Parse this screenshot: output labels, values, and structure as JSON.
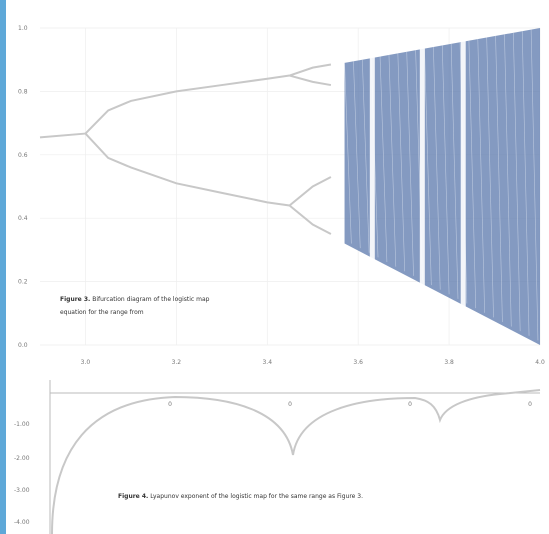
{
  "chart_data": [
    {
      "type": "line",
      "chart": "bifurcation-diagram",
      "xlim": [
        2.9,
        4.0
      ],
      "ylim": [
        0.0,
        1.0
      ],
      "x_ticks": [
        "3.0",
        "3.2",
        "3.4",
        "3.6",
        "3.8",
        "4.0"
      ],
      "y_ticks": [
        "1.0",
        "0.8",
        "0.6",
        "0.4",
        "0.2",
        "0.0"
      ],
      "grid": true,
      "branches": [
        {
          "x": [
            2.9,
            3.0
          ],
          "y": [
            0.655,
            0.667
          ]
        },
        {
          "x": [
            3.0,
            3.05,
            3.1,
            3.2,
            3.3,
            3.4,
            3.449
          ],
          "y": [
            0.667,
            0.74,
            0.77,
            0.8,
            0.82,
            0.84,
            0.85
          ]
        },
        {
          "x": [
            3.0,
            3.05,
            3.1,
            3.2,
            3.3,
            3.4,
            3.449
          ],
          "y": [
            0.667,
            0.59,
            0.56,
            0.51,
            0.48,
            0.45,
            0.44
          ]
        },
        {
          "x": [
            3.449,
            3.5,
            3.54
          ],
          "y": [
            0.85,
            0.875,
            0.885
          ]
        },
        {
          "x": [
            3.449,
            3.5,
            3.54
          ],
          "y": [
            0.85,
            0.83,
            0.82
          ]
        },
        {
          "x": [
            3.449,
            3.5,
            3.54
          ],
          "y": [
            0.44,
            0.5,
            0.53
          ]
        },
        {
          "x": [
            3.449,
            3.5,
            3.54
          ],
          "y": [
            0.44,
            0.38,
            0.35
          ]
        }
      ],
      "chaos_region": {
        "x_start": 3.57,
        "x_end": 4.0,
        "top": [
          0.89,
          1.0
        ],
        "bottom": [
          0.32,
          0.0
        ]
      },
      "windows": [
        3.63,
        3.74,
        3.83
      ],
      "caption_label": "Figure 3.",
      "caption_text": "Bifurcation diagram of the logistic map equation for the range from"
    },
    {
      "type": "line",
      "chart": "lyapunov-exponent",
      "y_ticks": [
        "-1.00",
        "-2.00",
        "-3.00",
        "-4.00"
      ],
      "point_labels": [
        "0",
        "0",
        "0",
        "0"
      ],
      "caption_label": "Figure 4.",
      "caption_text": "Lyapunov exponent of the logistic map for the same range as Figure 3."
    }
  ],
  "colors": {
    "accent_bar": "#5ea8d8",
    "chaos": "#5b78ac",
    "curve": "#c8c8c8"
  }
}
